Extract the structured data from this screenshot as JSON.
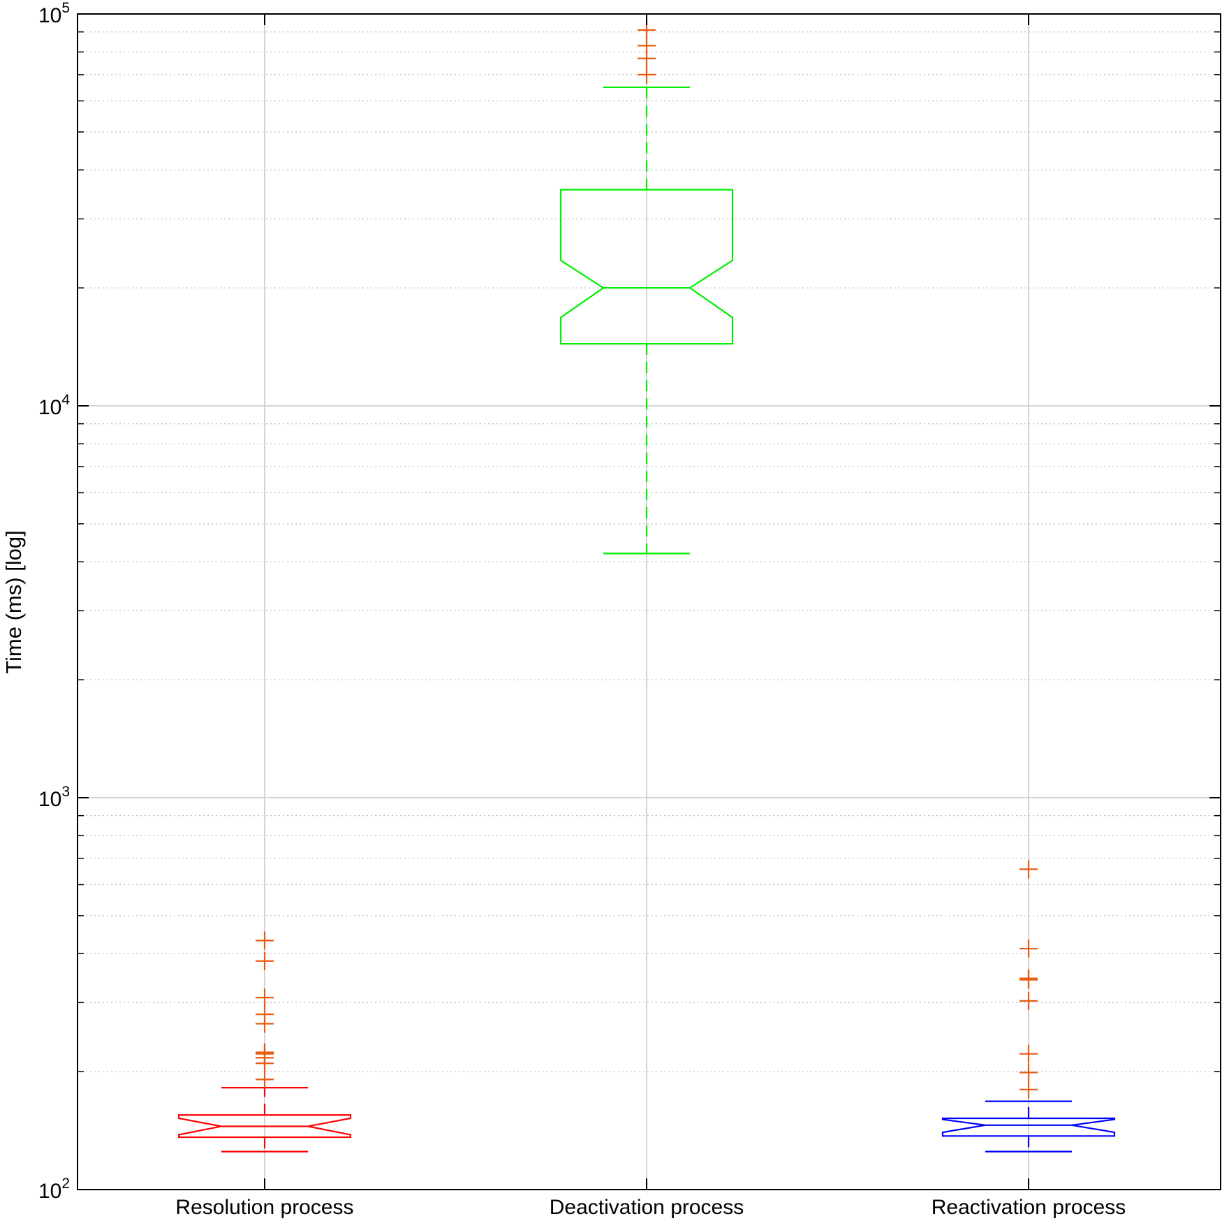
{
  "chart_data": {
    "type": "box",
    "title": "",
    "xlabel": "",
    "ylabel": "Time (ms) [log]",
    "yscale": "log",
    "ylim": [
      100,
      100000
    ],
    "yticks": [
      {
        "value": 100,
        "base": "10",
        "exp": "2"
      },
      {
        "value": 1000,
        "base": "10",
        "exp": "3"
      },
      {
        "value": 10000,
        "base": "10",
        "exp": "4"
      },
      {
        "value": 100000,
        "base": "10",
        "exp": "5"
      }
    ],
    "grid": true,
    "minor_grid": true,
    "notched": true,
    "categories": [
      "Resolution process",
      "Deactivation process",
      "Reactivation process"
    ],
    "boxes": [
      {
        "category": "Resolution process",
        "color": "#ff0000",
        "whisker_low": 125,
        "q1": 136,
        "median": 145,
        "q3": 155,
        "whisker_high": 182,
        "notch_low": 138,
        "notch_high": 152,
        "outliers": [
          191,
          210,
          217,
          222,
          224,
          265,
          280,
          309,
          383,
          432
        ]
      },
      {
        "category": "Deactivation process",
        "color": "#00ee00",
        "whisker_low": 4200,
        "q1": 14400,
        "median": 20000,
        "q3": 35600,
        "whisker_high": 65000,
        "notch_low": 16800,
        "notch_high": 23500,
        "outliers": [
          70000,
          77000,
          83000,
          91000
        ]
      },
      {
        "category": "Reactivation process",
        "color": "#0000ff",
        "whisker_low": 125,
        "q1": 137,
        "median": 146,
        "q3": 152,
        "whisker_high": 168,
        "notch_low": 140,
        "notch_high": 151,
        "outliers": [
          180,
          199,
          222,
          303,
          343,
          346,
          412,
          657
        ]
      }
    ],
    "outlier_color": "#e85a10",
    "colors": {
      "grid": "#c8c8c8",
      "minor_grid": "#c0c0c0",
      "axis": "#000000"
    }
  }
}
